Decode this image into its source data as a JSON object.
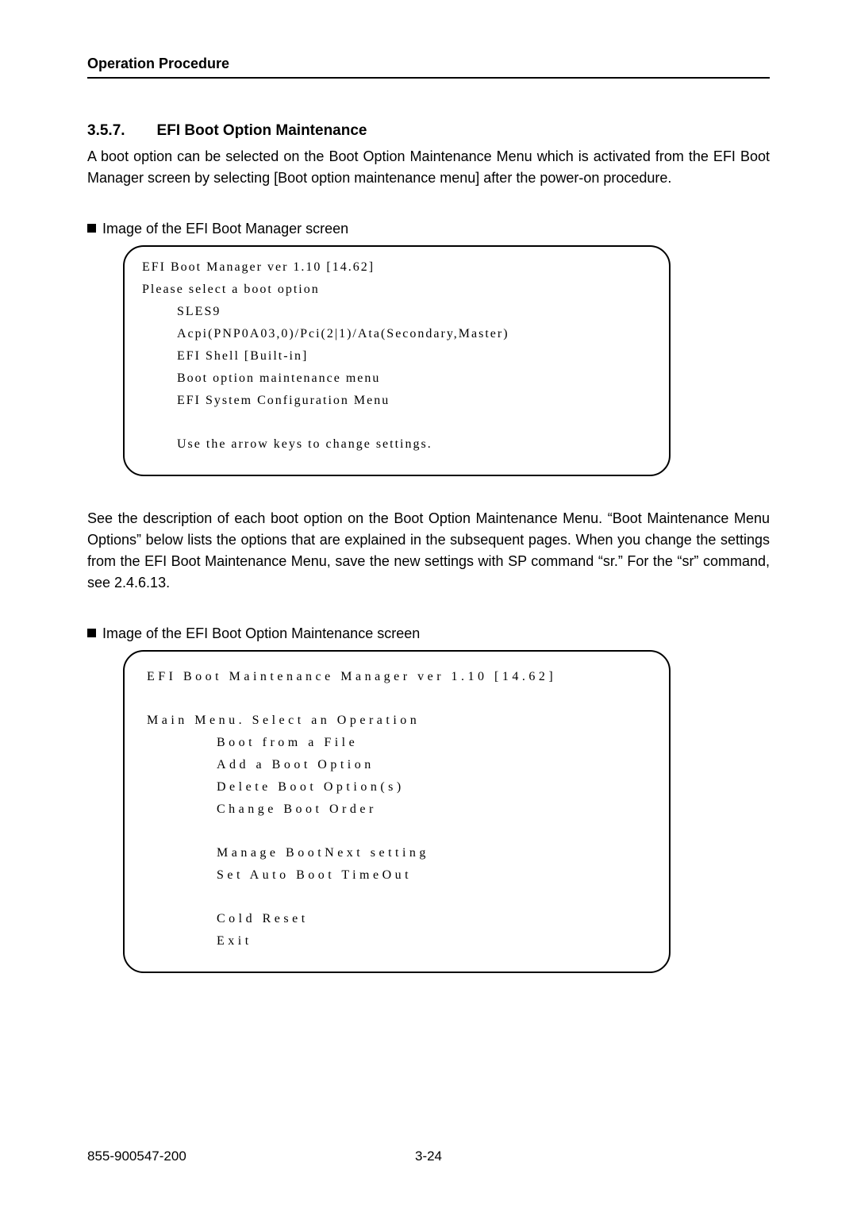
{
  "header": "Operation Procedure",
  "section_number": "3.5.7.",
  "section_title": "EFI Boot Option Maintenance",
  "intro": "A boot option can be selected on the Boot Option Maintenance Menu which is activated from the EFI Boot Manager screen by selecting [Boot option maintenance menu] after the power-on procedure.",
  "bullet1": "Image of the EFI Boot Manager screen",
  "panel1_lines": [
    {
      "text": "EFI Boot Manager ver 1.10 [14.62]",
      "indent": ""
    },
    {
      "text": "Please select a boot option",
      "indent": ""
    },
    {
      "text": "SLES9",
      "indent": "indent-a1"
    },
    {
      "text": "Acpi(PNP0A03,0)/Pci(2|1)/Ata(Secondary,Master)",
      "indent": "indent-a1"
    },
    {
      "text": "EFI Shell [Built-in]",
      "indent": "indent-a1"
    },
    {
      "text": "Boot option maintenance menu",
      "indent": "indent-a1"
    },
    {
      "text": "EFI System Configuration Menu",
      "indent": "indent-a1"
    },
    {
      "text": "",
      "indent": "blank"
    },
    {
      "text": "Use the arrow keys to change settings.",
      "indent": "indent-a1"
    }
  ],
  "mid_paragraph": "See the description of each boot option on the Boot Option Maintenance Menu. “Boot Maintenance Menu Options” below lists the options that are explained in the subsequent pages. When you change the settings from the EFI Boot Maintenance Menu, save the new settings with SP command “sr.” For the “sr” command, see 2.4.6.13.",
  "bullet2": "Image of the EFI Boot Option Maintenance screen",
  "panel2_lines": [
    {
      "text": "EFI Boot Maintenance Manager ver 1.10 [14.62]",
      "indent": "",
      "ls": "4.5px"
    },
    {
      "text": "",
      "indent": "blank"
    },
    {
      "text": "Main Menu. Select an Operation",
      "indent": "",
      "ls": "4.5px"
    },
    {
      "text": "Boot from a File",
      "indent": "indent-b1",
      "ls": "4.5px"
    },
    {
      "text": "Add a Boot Option",
      "indent": "indent-b1",
      "ls": "4.5px"
    },
    {
      "text": "Delete Boot Option(s)",
      "indent": "indent-b1",
      "ls": "4.5px"
    },
    {
      "text": "Change Boot Order",
      "indent": "indent-b1",
      "ls": "4.5px"
    },
    {
      "text": "",
      "indent": "blank"
    },
    {
      "text": "Manage BootNext setting",
      "indent": "indent-b1",
      "ls": "4.5px"
    },
    {
      "text": "Set Auto Boot TimeOut",
      "indent": "indent-b1",
      "ls": "4.5px"
    },
    {
      "text": "",
      "indent": "blank"
    },
    {
      "text": "Cold Reset",
      "indent": "indent-b1",
      "ls": "4.5px"
    },
    {
      "text": "Exit",
      "indent": "indent-b1",
      "ls": "4.5px"
    }
  ],
  "footer_left": "855-900547-200",
  "footer_center": "3-24"
}
